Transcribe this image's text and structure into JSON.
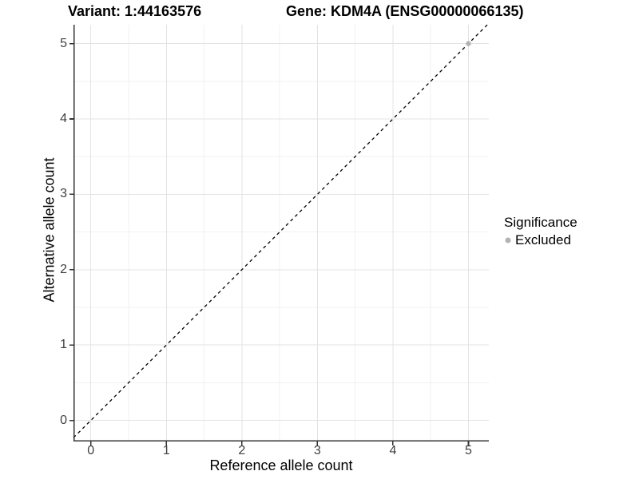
{
  "titles": {
    "variant": "Variant: 1:44163576",
    "gene": "Gene: KDM4A (ENSG00000066135)"
  },
  "axes": {
    "x": {
      "label": "Reference allele count",
      "ticks": [
        0,
        1,
        2,
        3,
        4,
        5
      ]
    },
    "y": {
      "label": "Alternative allele count",
      "ticks": [
        0,
        1,
        2,
        3,
        4,
        5
      ]
    }
  },
  "legend": {
    "title": "Significance",
    "items": [
      {
        "label": "Excluded",
        "color": "#b3b3b3"
      }
    ]
  },
  "chart_data": {
    "type": "scatter",
    "title_left": "Variant: 1:44163576",
    "title_right": "Gene: KDM4A (ENSG00000066135)",
    "xlabel": "Reference allele count",
    "ylabel": "Alternative allele count",
    "xlim": [
      -0.23,
      5.27
    ],
    "ylim": [
      -0.28,
      5.25
    ],
    "x_major_ticks": [
      0,
      1,
      2,
      3,
      4,
      5
    ],
    "y_major_ticks": [
      0,
      1,
      2,
      3,
      4,
      5
    ],
    "minor_grid_step": 0.5,
    "grid": "major and minor, light grey on white",
    "legend_position": "right",
    "series": [
      {
        "name": "Excluded",
        "color": "#b3b3b3",
        "points": [
          {
            "x": 5,
            "y": 5
          }
        ]
      }
    ],
    "reference_line": {
      "type": "identity",
      "slope": 1,
      "intercept": 0,
      "style": "dashed",
      "color": "#000000"
    }
  },
  "colors": {
    "background": "#ffffff",
    "axis_line": "#333333",
    "tick_label": "#404040",
    "grid_major": "#e3e3e3",
    "grid_minor": "#f0f0f0",
    "excluded_point": "#b3b3b3",
    "reference_line": "#000000"
  }
}
